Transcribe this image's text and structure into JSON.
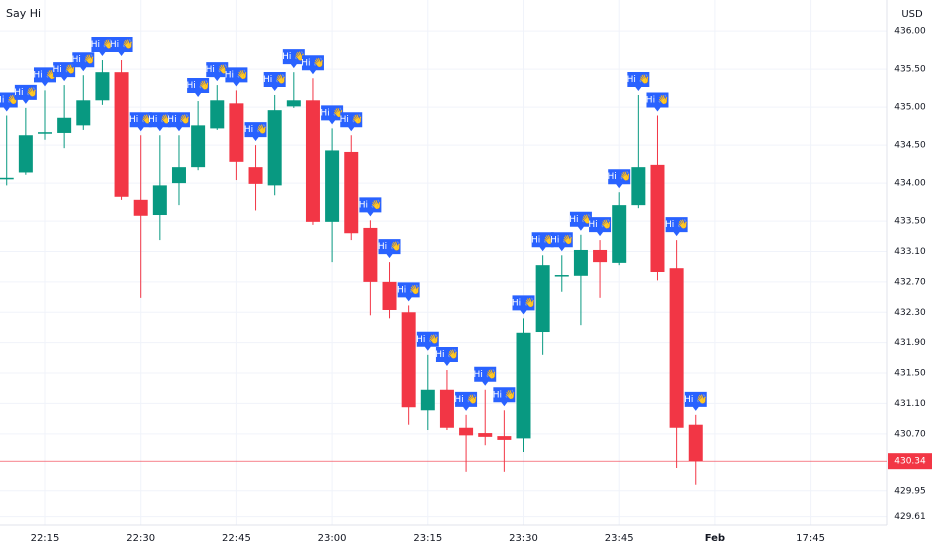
{
  "chart_data": {
    "type": "candlestick",
    "title": "Say Hi",
    "currency": "USD",
    "marker_text": "Hi 👋",
    "up_color": "#089981",
    "down_color": "#f23645",
    "marker_color": "#2962ff",
    "ylim": [
      429.5,
      436.41
    ],
    "yticks": [
      {
        "value": 436,
        "label": "436.00"
      },
      {
        "value": 435.5,
        "label": "435.50"
      },
      {
        "value": 435,
        "label": "435.00"
      },
      {
        "value": 434.5,
        "label": "434.50"
      },
      {
        "value": 434,
        "label": "434.00"
      },
      {
        "value": 433.5,
        "label": "433.50"
      },
      {
        "value": 433.1,
        "label": "433.10"
      },
      {
        "value": 432.7,
        "label": "432.70"
      },
      {
        "value": 432.3,
        "label": "432.30"
      },
      {
        "value": 431.9,
        "label": "431.90"
      },
      {
        "value": 431.5,
        "label": "431.50"
      },
      {
        "value": 431.1,
        "label": "431.10"
      },
      {
        "value": 430.7,
        "label": "430.70"
      },
      429.95,
      429.61
    ],
    "xticks": [
      "22:15",
      "22:30",
      "22:45",
      "23:00",
      "23:15",
      "23:30",
      "23:45",
      "Feb",
      "17:45"
    ],
    "candles": [
      {
        "time": "22:09",
        "open": 434.05,
        "high": 434.89,
        "low": 433.97,
        "close": 434.07
      },
      {
        "time": "22:12",
        "open": 434.14,
        "high": 434.99,
        "low": 434.11,
        "close": 434.63
      },
      {
        "time": "22:15",
        "open": 434.65,
        "high": 435.22,
        "low": 434.57,
        "close": 434.67
      },
      {
        "time": "22:18",
        "open": 434.66,
        "high": 435.29,
        "low": 434.46,
        "close": 434.86
      },
      {
        "time": "22:21",
        "open": 434.76,
        "high": 435.42,
        "low": 434.7,
        "close": 435.09
      },
      {
        "time": "22:24",
        "open": 435.09,
        "high": 435.62,
        "low": 435.03,
        "close": 435.46
      },
      {
        "time": "22:27",
        "open": 435.46,
        "high": 435.62,
        "low": 433.78,
        "close": 433.82
      },
      {
        "time": "22:30",
        "open": 433.78,
        "high": 434.63,
        "low": 432.49,
        "close": 433.57
      },
      {
        "time": "22:33",
        "open": 433.58,
        "high": 434.63,
        "low": 433.25,
        "close": 433.97
      },
      {
        "time": "22:36",
        "open": 434.0,
        "high": 434.63,
        "low": 433.71,
        "close": 434.21
      },
      {
        "time": "22:39",
        "open": 434.21,
        "high": 435.08,
        "low": 434.17,
        "close": 434.76
      },
      {
        "time": "22:42",
        "open": 434.72,
        "high": 435.29,
        "low": 434.7,
        "close": 435.09
      },
      {
        "time": "22:45",
        "open": 435.05,
        "high": 435.22,
        "low": 434.04,
        "close": 434.28
      },
      {
        "time": "22:48",
        "open": 434.21,
        "high": 434.5,
        "low": 433.64,
        "close": 433.99
      },
      {
        "time": "22:51",
        "open": 433.97,
        "high": 435.16,
        "low": 433.84,
        "close": 434.96
      },
      {
        "time": "22:54",
        "open": 435.01,
        "high": 435.46,
        "low": 434.99,
        "close": 435.09
      },
      {
        "time": "22:57",
        "open": 435.09,
        "high": 435.38,
        "low": 433.45,
        "close": 433.49
      },
      {
        "time": "23:00",
        "open": 433.49,
        "high": 434.72,
        "low": 432.96,
        "close": 434.43
      },
      {
        "time": "23:03",
        "open": 434.41,
        "high": 434.63,
        "low": 433.25,
        "close": 433.34
      },
      {
        "time": "23:06",
        "open": 433.41,
        "high": 433.51,
        "low": 432.26,
        "close": 432.7
      },
      {
        "time": "23:09",
        "open": 432.7,
        "high": 432.96,
        "low": 432.22,
        "close": 432.33
      },
      {
        "time": "23:12",
        "open": 432.3,
        "high": 432.39,
        "low": 430.82,
        "close": 431.05
      },
      {
        "time": "23:15",
        "open": 431.01,
        "high": 431.74,
        "low": 430.75,
        "close": 431.28
      },
      {
        "time": "23:18",
        "open": 431.28,
        "high": 431.54,
        "low": 430.75,
        "close": 430.78
      },
      {
        "time": "23:21",
        "open": 430.78,
        "high": 430.95,
        "low": 430.2,
        "close": 430.68
      },
      {
        "time": "23:24",
        "open": 430.71,
        "high": 431.28,
        "low": 430.55,
        "close": 430.66
      },
      {
        "time": "23:27",
        "open": 430.67,
        "high": 431.01,
        "low": 430.2,
        "close": 430.62
      },
      {
        "time": "23:30",
        "open": 430.64,
        "high": 432.22,
        "low": 430.46,
        "close": 432.03
      },
      {
        "time": "23:33",
        "open": 432.04,
        "high": 433.05,
        "low": 431.74,
        "close": 432.92
      },
      {
        "time": "23:36",
        "open": 432.78,
        "high": 433.05,
        "low": 432.57,
        "close": 432.79
      },
      {
        "time": "23:39",
        "open": 432.78,
        "high": 433.32,
        "low": 432.13,
        "close": 433.12
      },
      {
        "time": "23:42",
        "open": 433.12,
        "high": 433.25,
        "low": 432.49,
        "close": 432.96
      },
      {
        "time": "23:45",
        "open": 432.95,
        "high": 433.88,
        "low": 432.92,
        "close": 433.71
      },
      {
        "time": "23:48",
        "open": 433.71,
        "high": 435.16,
        "low": 433.67,
        "close": 434.21
      },
      {
        "time": "23:51",
        "open": 434.24,
        "high": 434.89,
        "low": 432.72,
        "close": 432.83
      },
      {
        "time": "23:54",
        "open": 432.88,
        "high": 433.25,
        "low": 430.25,
        "close": 430.78
      },
      {
        "time": "23:57",
        "open": 430.82,
        "high": 430.95,
        "low": 430.03,
        "close": 430.34
      }
    ]
  }
}
